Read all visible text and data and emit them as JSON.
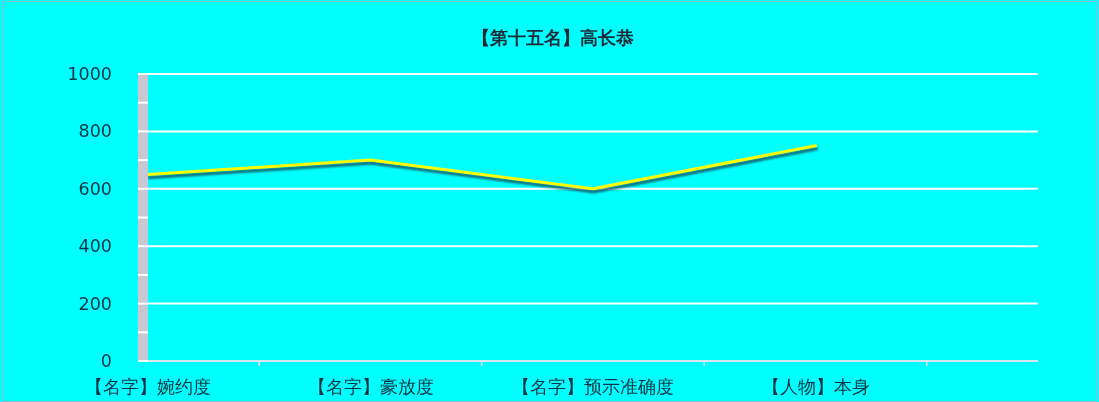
{
  "chart_data": {
    "type": "line",
    "title": "【第十五名】高长恭",
    "categories": [
      "【名字】婉约度",
      "【名字】豪放度",
      "【名字】预示准确度",
      "【人物】本身",
      null
    ],
    "series": [
      {
        "color": "#ffff00",
        "values": [
          650,
          700,
          600,
          750,
          null
        ]
      }
    ],
    "ylim": [
      0,
      1000
    ],
    "yticks": [
      0,
      {
        "value": 100,
        "label": null
      },
      200,
      {
        "value": 300,
        "label": null
      },
      400,
      {
        "value": 500,
        "label": null
      },
      600,
      {
        "value": 700,
        "label": null
      },
      800,
      {
        "value": 900,
        "label": null
      },
      1000
    ],
    "grid": "y"
  }
}
